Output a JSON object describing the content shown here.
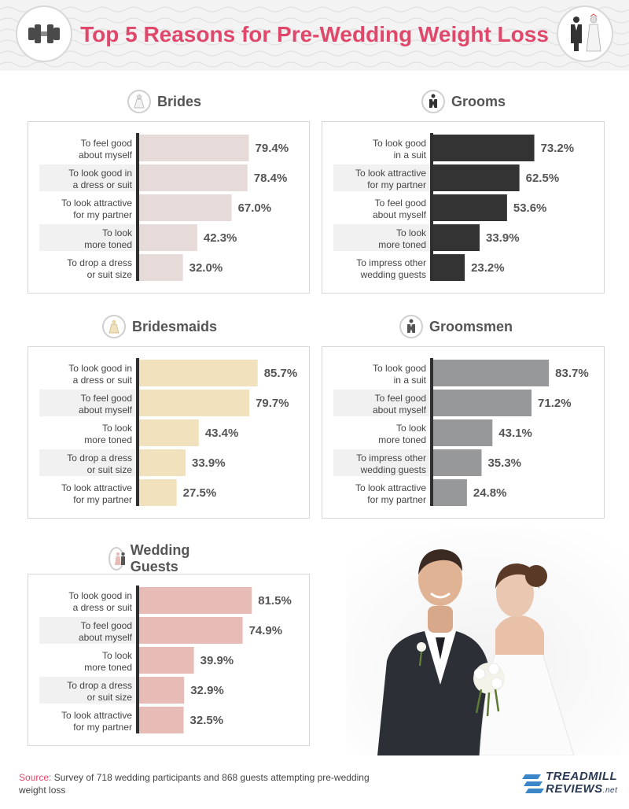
{
  "title": "Top 5 Reasons for Pre-Wedding Weight Loss",
  "header_icons": [
    "dumbbell-icon",
    "bride-groom-icon"
  ],
  "source": {
    "key": "Source:",
    "text": "Survey of 718 wedding participants and 868 guests attempting pre-wedding weight loss"
  },
  "logo": {
    "line1": "TREADMILL",
    "line2": "REVIEWS",
    "suffix": ".net"
  },
  "chart_data": [
    {
      "type": "bar",
      "orientation": "horizontal",
      "title": "Brides",
      "icon": "bride-icon",
      "color": "#e6dbd9",
      "categories": [
        [
          "To feel good",
          "about myself"
        ],
        [
          "To look good in",
          "a dress or suit"
        ],
        [
          "To look attractive",
          "for my partner"
        ],
        [
          "To look",
          "more toned"
        ],
        [
          "To drop a dress",
          "or suit size"
        ]
      ],
      "values": [
        79.4,
        78.4,
        67.0,
        42.3,
        32.0
      ],
      "value_labels": [
        "79.4%",
        "78.4%",
        "67.0%",
        "42.3%",
        "32.0%"
      ]
    },
    {
      "type": "bar",
      "orientation": "horizontal",
      "title": "Grooms",
      "icon": "tuxedo-icon",
      "color": "#333333",
      "categories": [
        [
          "To look good",
          "in a suit"
        ],
        [
          "To look attractive",
          "for my partner"
        ],
        [
          "To feel good",
          "about myself"
        ],
        [
          "To look",
          "more toned"
        ],
        [
          "To impress other",
          "wedding guests"
        ]
      ],
      "values": [
        73.2,
        62.5,
        53.6,
        33.9,
        23.2
      ],
      "value_labels": [
        "73.2%",
        "62.5%",
        "53.6%",
        "33.9%",
        "23.2%"
      ]
    },
    {
      "type": "bar",
      "orientation": "horizontal",
      "title": "Bridesmaids",
      "icon": "bridesmaid-dress-icon",
      "color": "#f1e1bc",
      "categories": [
        [
          "To look good in",
          "a dress or suit"
        ],
        [
          "To feel good",
          "about myself"
        ],
        [
          "To look",
          "more toned"
        ],
        [
          "To drop a dress",
          "or suit size"
        ],
        [
          "To look attractive",
          "for my partner"
        ]
      ],
      "values": [
        85.7,
        79.7,
        43.4,
        33.9,
        27.5
      ],
      "value_labels": [
        "85.7%",
        "79.7%",
        "43.4%",
        "33.9%",
        "27.5%"
      ]
    },
    {
      "type": "bar",
      "orientation": "horizontal",
      "title": "Groomsmen",
      "icon": "groomsman-suit-icon",
      "color": "#97989a",
      "categories": [
        [
          "To look good",
          "in a suit"
        ],
        [
          "To feel good",
          "about myself"
        ],
        [
          "To look",
          "more toned"
        ],
        [
          "To impress other",
          "wedding guests"
        ],
        [
          "To look attractive",
          "for my partner"
        ]
      ],
      "values": [
        83.7,
        71.2,
        43.1,
        35.3,
        24.8
      ],
      "value_labels": [
        "83.7%",
        "71.2%",
        "43.1%",
        "35.3%",
        "24.8%"
      ]
    },
    {
      "type": "bar",
      "orientation": "horizontal",
      "title": "Wedding Guests",
      "icon": "guests-icon",
      "color": "#e8bcb6",
      "categories": [
        [
          "To look good in",
          "a dress or suit"
        ],
        [
          "To feel good",
          "about myself"
        ],
        [
          "To look",
          "more toned"
        ],
        [
          "To drop a dress",
          "or suit size"
        ],
        [
          "To look attractive",
          "for my partner"
        ]
      ],
      "values": [
        81.5,
        74.9,
        39.9,
        32.9,
        32.5
      ],
      "value_labels": [
        "81.5%",
        "74.9%",
        "39.9%",
        "32.9%",
        "32.5%"
      ]
    }
  ]
}
